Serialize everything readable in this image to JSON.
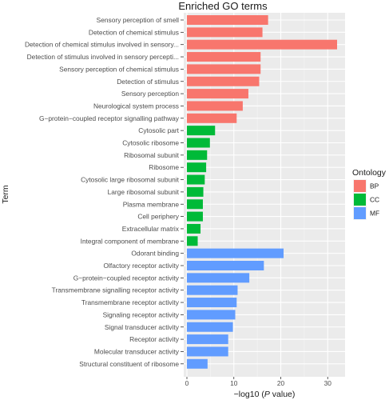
{
  "chart_data": {
    "type": "bar",
    "orientation": "horizontal",
    "title": "Enriched GO terms",
    "xlabel": "−log10 (P value)",
    "xlabel_prefix": "−log10 (",
    "xlabel_italic": "P",
    "xlabel_suffix": " value)",
    "ylabel": "Term",
    "xlim": [
      0,
      33.5
    ],
    "x_ticks": [
      0,
      10,
      20,
      30
    ],
    "grid": true,
    "legend": {
      "title": "Ontology",
      "position": "right",
      "entries": [
        {
          "label": "BP",
          "color": "#F8766D"
        },
        {
          "label": "CC",
          "color": "#00BA38"
        },
        {
          "label": "MF",
          "color": "#619CFF"
        }
      ]
    },
    "categories": [
      "Sensory perception of smell",
      "Detection of chemical stimulus",
      "Detection of chemical stimulus involved in sensory...",
      "Detection of stimulus involved in sensory percepti...",
      "Sensory perception of chemical stimulus",
      "Detection of stimulus",
      "Sensory perception",
      "Neurological system process",
      "G−protein−coupled receptor signalling pathway",
      "Cytosolic part",
      "Cytosolic ribosome",
      "Ribosomal subunit",
      "Ribosome",
      "Cytosolic large ribosomal subunit",
      "Large ribosomal subunit",
      "Plasma membrane",
      "Cell periphery",
      "Extracellular matrix",
      "Integral component of membrane",
      "Odorant binding",
      "Olfactory receptor activity",
      "G−protein−coupled receptor activity",
      "Transmembrane signalling receptor activity",
      "Transmembrane receptor activity",
      "Signaling receptor activity",
      "Signal transducer activity",
      "Receptor activity",
      "Molecular transducer activity",
      "Structural constituent of ribosome"
    ],
    "values": [
      17.3,
      16.1,
      32.0,
      15.7,
      15.7,
      15.4,
      13.1,
      11.9,
      10.6,
      6.0,
      4.9,
      4.3,
      4.1,
      3.8,
      3.5,
      3.4,
      3.4,
      2.9,
      2.3,
      20.6,
      16.4,
      13.3,
      10.8,
      10.6,
      10.3,
      9.8,
      8.8,
      8.8,
      4.4
    ],
    "ontology": [
      "BP",
      "BP",
      "BP",
      "BP",
      "BP",
      "BP",
      "BP",
      "BP",
      "BP",
      "CC",
      "CC",
      "CC",
      "CC",
      "CC",
      "CC",
      "CC",
      "CC",
      "CC",
      "CC",
      "MF",
      "MF",
      "MF",
      "MF",
      "MF",
      "MF",
      "MF",
      "MF",
      "MF",
      "MF"
    ]
  }
}
